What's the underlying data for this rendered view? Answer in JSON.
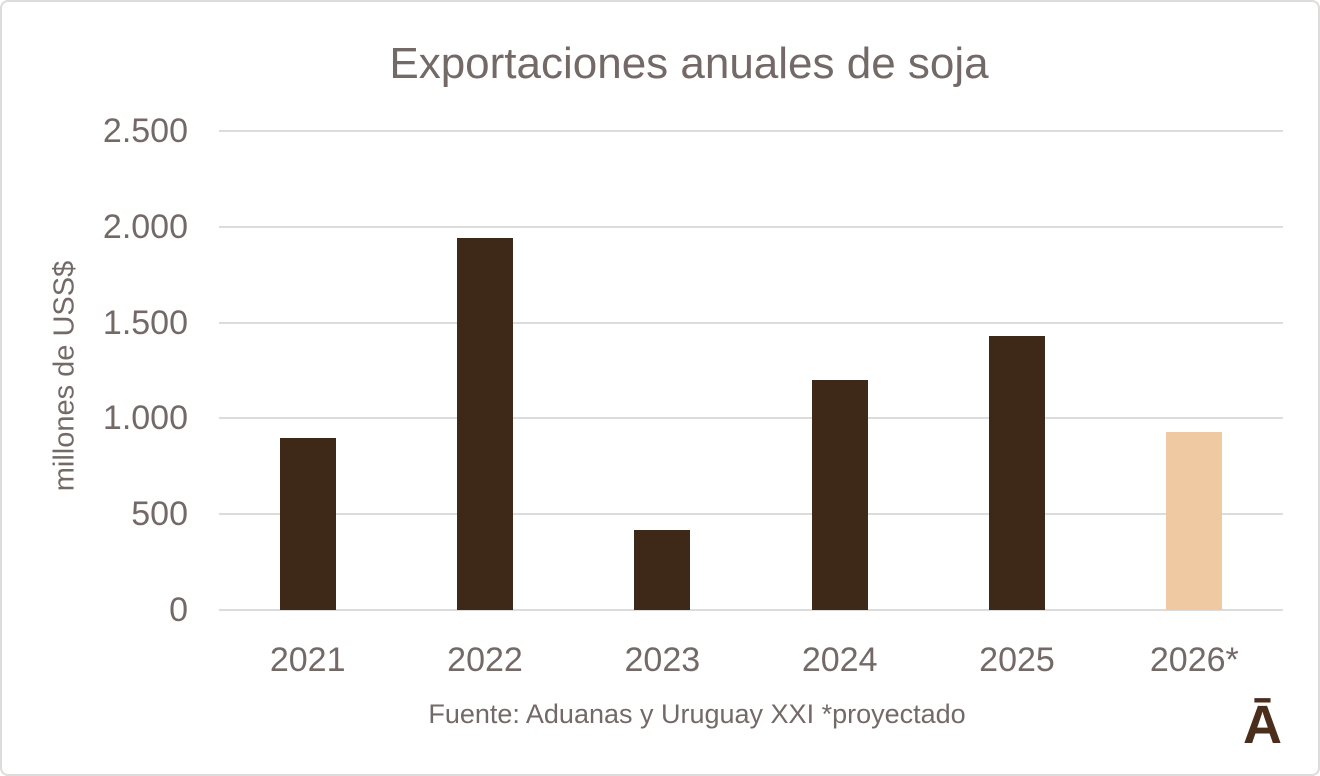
{
  "chart_data": {
    "type": "bar",
    "title": "Exportaciones anuales de soja",
    "ylabel": "millones de USS$",
    "xlabel": "",
    "categories": [
      "2021",
      "2022",
      "2023",
      "2024",
      "2025",
      "2026*"
    ],
    "values": [
      900,
      1940,
      420,
      1200,
      1430,
      930
    ],
    "ylim": [
      0,
      2500
    ],
    "ytick_interval": 500,
    "ytick_labels": [
      "0",
      "500",
      "1.000",
      "1.500",
      "2.000",
      "2.500"
    ],
    "grid": true,
    "legend": false,
    "bar_colors": [
      "#3E2817",
      "#3E2817",
      "#3E2817",
      "#3E2817",
      "#3E2817",
      "#EFC9A2"
    ],
    "projected_category": "2026*",
    "source_note": "Fuente: Aduanas y Uruguay XXI *proyectado"
  },
  "branding": {
    "logo_text": "Ā",
    "logo_color": "#4A2D1B"
  },
  "colors": {
    "text": "#736967",
    "gridline": "#DCDCDC",
    "bar_default": "#3E2817",
    "bar_projected": "#EFC9A2",
    "background": "#FFFFFF",
    "border": "#DEDBDB"
  }
}
